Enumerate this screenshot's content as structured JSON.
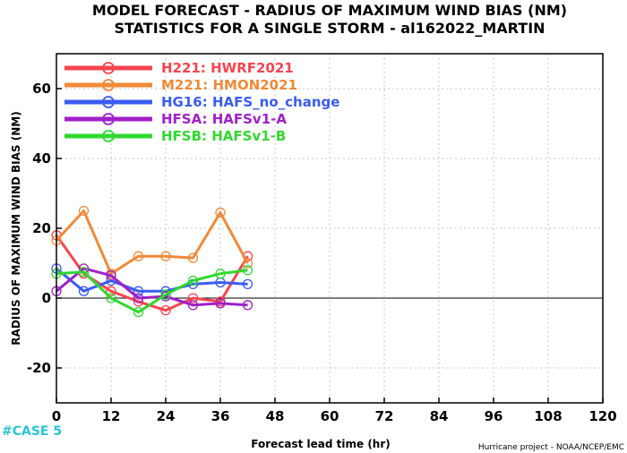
{
  "title_line1": "MODEL FORECAST - RADIUS OF MAXIMUM WIND BIAS (NM)",
  "title_line2": "STATISTICS FOR A SINGLE STORM - al162022_MARTIN",
  "case_label": "#CASE  5",
  "credit": "Hurricane project - NOAA/NCEP/EMC",
  "colors": {
    "case_label": "#29c5d6",
    "zero_line": "#000000",
    "grid": "#c8c8c8"
  },
  "chart_data": {
    "type": "line",
    "xlabel": "Forecast lead time (hr)",
    "ylabel": "RADIUS OF MAXIMUM WIND BIAS (NM)",
    "xlim": [
      0,
      120
    ],
    "ylim": [
      -30,
      70
    ],
    "xticks": [
      0,
      12,
      24,
      36,
      48,
      60,
      72,
      84,
      96,
      108,
      120
    ],
    "yticks": [
      -20,
      0,
      20,
      40,
      60
    ],
    "grid": true,
    "legend_position": "top-left",
    "x": [
      0,
      6,
      12,
      18,
      24,
      30,
      36,
      42
    ],
    "series": [
      {
        "legend_label": "H221:  HWRF2021",
        "color": "#f5454f",
        "values": [
          18,
          7,
          2,
          -1,
          -3.5,
          0,
          -1,
          12
        ]
      },
      {
        "legend_label": "M221:  HMON2021",
        "color": "#f08a38",
        "values": [
          16.5,
          25,
          7,
          12,
          12,
          11.5,
          24.5,
          10
        ]
      },
      {
        "legend_label": "HG16:  HAFS_no_change",
        "color": "#3a5cf0",
        "values": [
          8.5,
          2,
          5,
          2,
          2,
          4,
          4.5,
          4
        ]
      },
      {
        "legend_label": "HFSA:  HAFSv1-A",
        "color": "#a020c8",
        "values": [
          2,
          8.5,
          6.5,
          0,
          0.5,
          -2,
          -1.5,
          -2
        ]
      },
      {
        "legend_label": "HFSB:  HAFSv1-B",
        "color": "#30d830",
        "values": [
          7,
          7.5,
          0,
          -4,
          1,
          5,
          7,
          8
        ]
      }
    ]
  }
}
